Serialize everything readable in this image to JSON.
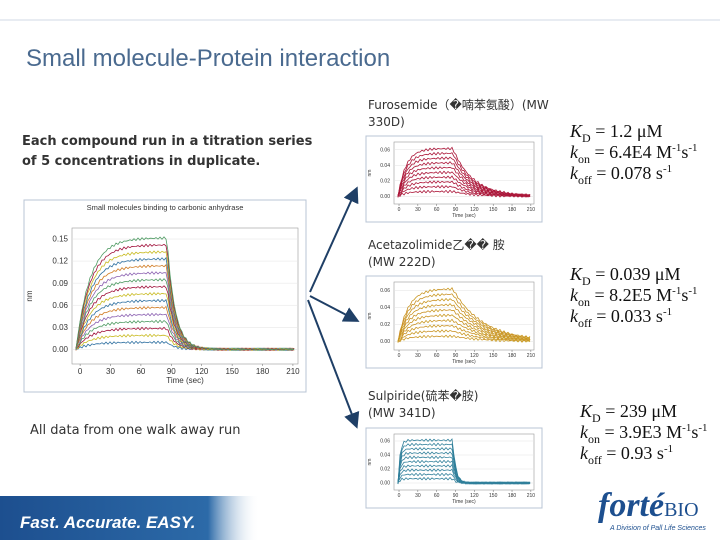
{
  "title": "Small molecule-Protein interaction",
  "intro": [
    "Each compound run in a titration series",
    "of 5 concentrations in duplicate."
  ],
  "note": "All data from one walk away run",
  "main_chart": {
    "title": "Small molecules binding to carbonic anhydrase",
    "ylabel": "nm",
    "xlabel": "Time (sec)",
    "ylim": [
      -0.02,
      0.165
    ],
    "yticks": [
      0.15,
      0.12,
      0.09,
      0.06,
      0.03,
      {
        "value": 0,
        "label": "0.00"
      }
    ],
    "xlim": [
      -8,
      215
    ],
    "xticks": [
      0,
      30,
      60,
      90,
      120,
      150,
      180,
      210
    ]
  },
  "compounds": [
    {
      "label": [
        "Furosemide（�喃苯氨酸）(MW",
        "330D)"
      ],
      "chart": {
        "ylabel": "nm",
        "xlabel": "Time (sec)",
        "ylim": [
          -0.01,
          0.07
        ],
        "yticks": [
          0.06,
          0.04,
          0.02,
          {
            "value": 0,
            "label": "0.00"
          }
        ],
        "xlim": [
          -8,
          215
        ],
        "xticks": [
          0,
          30,
          60,
          90,
          120,
          150,
          180,
          210
        ],
        "trace_color": "#a0103a"
      },
      "kinetics": [
        [
          {
            "text": "K",
            "pos": "base",
            "italic": true
          },
          {
            "text": "D",
            "pos": "sub"
          },
          {
            "text": " = 1.2 μM",
            "pos": "base"
          }
        ],
        [
          {
            "text": "k",
            "pos": "base",
            "italic": true
          },
          {
            "text": "on",
            "pos": "sub"
          },
          {
            "text": " = 6.4E4 M",
            "pos": "base"
          },
          {
            "text": "-1",
            "pos": "sup"
          },
          {
            "text": "s",
            "pos": "base"
          },
          {
            "text": "-1",
            "pos": "sup"
          }
        ],
        [
          {
            "text": "k",
            "pos": "base",
            "italic": true
          },
          {
            "text": "off",
            "pos": "sub"
          },
          {
            "text": " = 0.078 s",
            "pos": "base"
          },
          {
            "text": "-1",
            "pos": "sup"
          }
        ]
      ]
    },
    {
      "label": [
        "Acetazolimide乙�� 胺",
        "(MW 222D)"
      ],
      "chart": {
        "ylabel": "nm",
        "xlabel": "Time (sec)",
        "ylim": [
          -0.01,
          0.07
        ],
        "yticks": [
          0.06,
          0.04,
          0.02,
          {
            "value": 0,
            "label": "0.00"
          }
        ],
        "xlim": [
          -8,
          215
        ],
        "xticks": [
          0,
          30,
          60,
          90,
          120,
          150,
          180,
          210
        ],
        "trace_color": "#c9bb22"
      },
      "kinetics": [
        [
          {
            "text": "K",
            "pos": "base",
            "italic": true
          },
          {
            "text": "D",
            "pos": "sub"
          },
          {
            "text": " = 0.039 μM",
            "pos": "base"
          }
        ],
        [
          {
            "text": "k",
            "pos": "base",
            "italic": true
          },
          {
            "text": "on",
            "pos": "sub"
          },
          {
            "text": " = 8.2E5 M",
            "pos": "base"
          },
          {
            "text": "-1",
            "pos": "sup"
          },
          {
            "text": "s",
            "pos": "base"
          },
          {
            "text": "-1",
            "pos": "sup"
          }
        ],
        [
          {
            "text": "k",
            "pos": "base",
            "italic": true
          },
          {
            "text": "off",
            "pos": "sub"
          },
          {
            "text": " = 0.033 s",
            "pos": "base"
          },
          {
            "text": "-1",
            "pos": "sup"
          }
        ]
      ]
    },
    {
      "label": [
        "Sulpiride(硫苯�胺)",
        " (MW 341D)"
      ],
      "chart": {
        "ylabel": "nm",
        "xlabel": "Time (sec)",
        "ylim": [
          -0.01,
          0.07
        ],
        "yticks": [
          0.06,
          0.04,
          0.02,
          {
            "value": 0,
            "label": "0.00"
          }
        ],
        "xlim": [
          -8,
          215
        ],
        "xticks": [
          0,
          30,
          60,
          90,
          120,
          150,
          180,
          210
        ],
        "trace_color": "#2f7f9a"
      },
      "kinetics": [
        [
          {
            "text": "K",
            "pos": "base",
            "italic": true
          },
          {
            "text": "D",
            "pos": "sub"
          },
          {
            "text": " = 239 μM",
            "pos": "base"
          }
        ],
        [
          {
            "text": "k",
            "pos": "base",
            "italic": true
          },
          {
            "text": "on",
            "pos": "sub"
          },
          {
            "text": " = 3.9E3 M",
            "pos": "base"
          },
          {
            "text": "-1",
            "pos": "sup"
          },
          {
            "text": "s",
            "pos": "base"
          },
          {
            "text": "-1",
            "pos": "sup"
          }
        ],
        [
          {
            "text": "k",
            "pos": "base",
            "italic": true
          },
          {
            "text": "off",
            "pos": "sub"
          },
          {
            "text": " = 0.93 s",
            "pos": "base"
          },
          {
            "text": "-1",
            "pos": "sup"
          }
        ]
      ]
    }
  ],
  "footer": {
    "tagline": "Fast. Accurate. EASY.",
    "logo": "forté",
    "logo_suffix": "BIO",
    "division": "A Division of Pall Life Sciences"
  }
}
